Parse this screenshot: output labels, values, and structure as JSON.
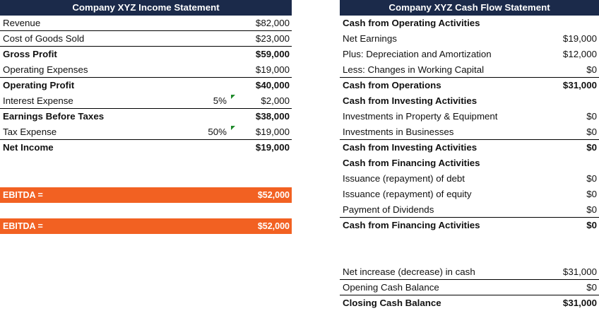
{
  "income": {
    "title": "Company XYZ Income Statement",
    "rows": [
      {
        "label": "Revenue",
        "value": "$82,000",
        "pct": ""
      },
      {
        "label": "Cost of Goods Sold",
        "value": "$23,000",
        "pct": ""
      },
      {
        "label": "Gross Profit",
        "value": "$59,000",
        "pct": ""
      },
      {
        "label": "Operating Expenses",
        "value": "$19,000",
        "pct": ""
      },
      {
        "label": "Operating Profit",
        "value": "$40,000",
        "pct": ""
      },
      {
        "label": "Interest Expense",
        "value": "$2,000",
        "pct": "5%"
      },
      {
        "label": "Earnings Before Taxes",
        "value": "$38,000",
        "pct": ""
      },
      {
        "label": "Tax Expense",
        "value": "$19,000",
        "pct": "50%"
      },
      {
        "label": "Net Income",
        "value": "$19,000",
        "pct": ""
      }
    ],
    "ebitda": [
      {
        "label": "EBITDA =",
        "value": "$52,000"
      },
      {
        "label": "EBITDA =",
        "value": "$52,000"
      }
    ]
  },
  "cashflow": {
    "title": "Company XYZ Cash Flow Statement",
    "rows": [
      {
        "label": "Cash from Operating Activities",
        "value": ""
      },
      {
        "label": "Net Earnings",
        "value": "$19,000"
      },
      {
        "label": "Plus: Depreciation and Amortization",
        "value": "$12,000"
      },
      {
        "label": "Less: Changes in Working Capital",
        "value": "$0"
      },
      {
        "label": "Cash from Operations",
        "value": "$31,000"
      },
      {
        "label": "Cash from Investing Activities",
        "value": ""
      },
      {
        "label": "Investments in Property & Equipment",
        "value": "$0"
      },
      {
        "label": "Investments in Businesses",
        "value": "$0"
      },
      {
        "label": "Cash from Investing Activities",
        "value": "$0"
      },
      {
        "label": "Cash from Financing Activities",
        "value": ""
      },
      {
        "label": "Issuance (repayment) of debt",
        "value": "$0"
      },
      {
        "label": "Issuance (repayment) of equity",
        "value": "$0"
      },
      {
        "label": "Payment of Dividends",
        "value": "$0"
      },
      {
        "label": "Cash from Financing Activities",
        "value": "$0"
      },
      {
        "label": "",
        "value": ""
      },
      {
        "label": "",
        "value": ""
      },
      {
        "label": "Net increase (decrease) in cash",
        "value": "$31,000"
      },
      {
        "label": "Opening Cash Balance",
        "value": "$0"
      },
      {
        "label": "Closing Cash Balance",
        "value": "$31,000"
      }
    ]
  },
  "colors": {
    "header_bg": "#1b2a4a",
    "ebitda_bg": "#f26122",
    "flag_green": "#1f8a2b"
  }
}
